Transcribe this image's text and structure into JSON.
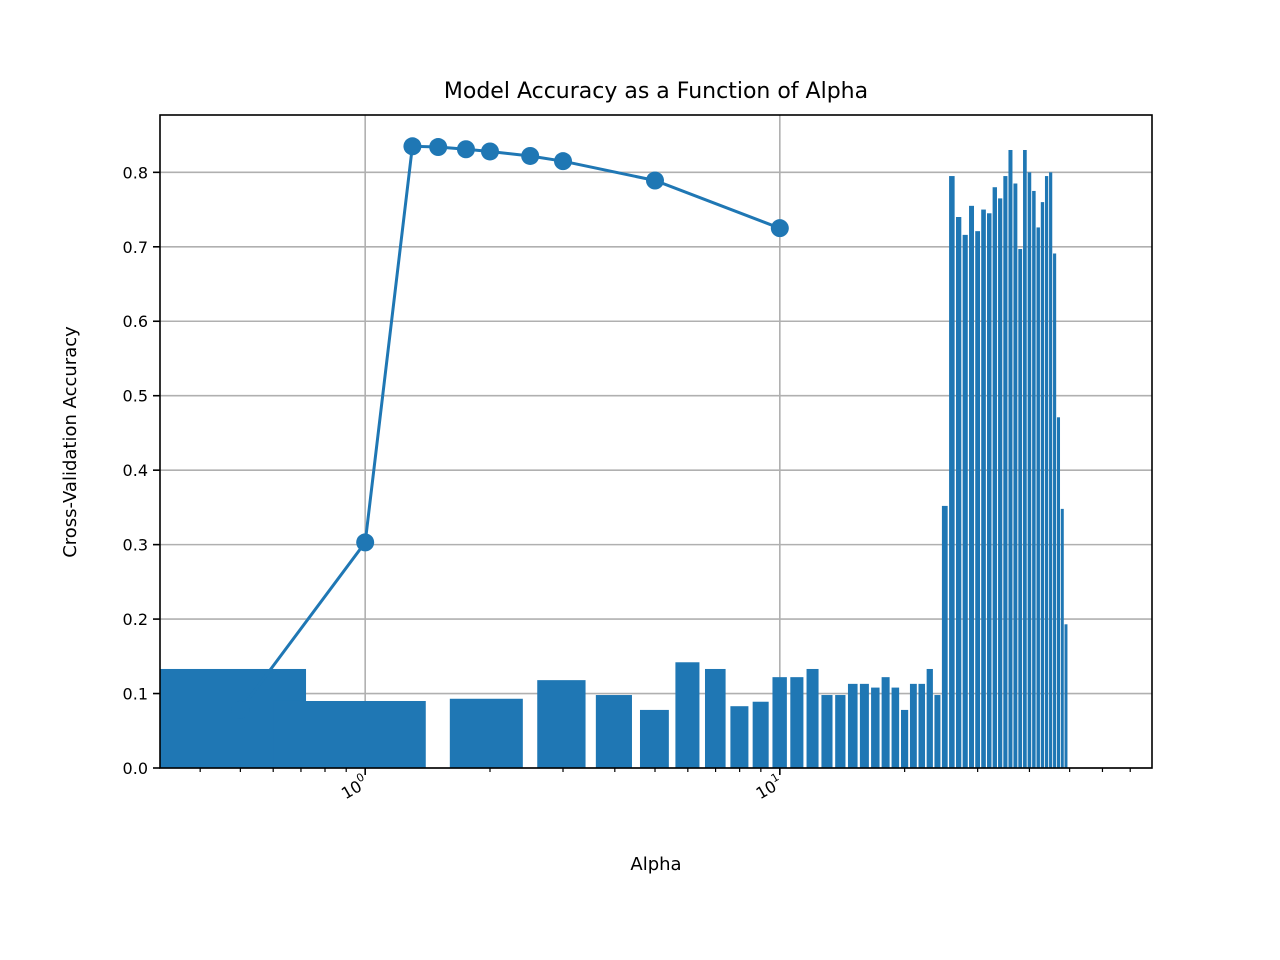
{
  "chart_data": {
    "type": "bar",
    "title": "Model Accuracy as a Function of Alpha",
    "xlabel": "Alpha",
    "ylabel": "Cross-Validation Accuracy",
    "xscale": "log",
    "xlim": [
      0.32,
      79.0
    ],
    "ylim": [
      0.0,
      0.877
    ],
    "grid": true,
    "color": "#1f77b4",
    "x_ticks": [
      {
        "value": 1,
        "base": "10",
        "exp": "0"
      },
      {
        "value": 10,
        "base": "10",
        "exp": "1"
      }
    ],
    "y_ticks": [
      {
        "value": 0.0,
        "label": "0.0"
      },
      {
        "value": 0.1,
        "label": "0.1"
      },
      {
        "value": 0.2,
        "label": "0.2"
      },
      {
        "value": 0.3,
        "label": "0.3"
      },
      {
        "value": 0.4,
        "label": "0.4"
      },
      {
        "value": 0.5,
        "label": "0.5"
      },
      {
        "value": 0.6,
        "label": "0.6"
      },
      {
        "value": 0.7,
        "label": "0.7"
      },
      {
        "value": 0.8,
        "label": "0.8"
      }
    ],
    "line_series": {
      "x": [
        0.5,
        1.0,
        1.3,
        1.5,
        1.75,
        2.0,
        2.5,
        3.0,
        5.0,
        10.0
      ],
      "y": [
        0.078,
        0.303,
        0.835,
        0.834,
        0.831,
        0.828,
        0.822,
        0.815,
        0.789,
        0.725
      ]
    },
    "bar_series": {
      "x": [
        0.32,
        1.0,
        2.0,
        3.0,
        4.0,
        5.0,
        6.0,
        7.0,
        8.0,
        9.0,
        10.0,
        11.0,
        12.0,
        13.0,
        14.0,
        15.0,
        16.0,
        17.0,
        18.0,
        19.0,
        20.0,
        21.0,
        22.0,
        23.0,
        24.0,
        25.0,
        26.0,
        27.0,
        28.0,
        29.0,
        30.0,
        31.0,
        32.0,
        33.0,
        34.0,
        35.0,
        36.0,
        37.0,
        38.0,
        39.0,
        40.0,
        41.0,
        42.0,
        43.0,
        44.0,
        45.0,
        46.0,
        47.0,
        48.0,
        49.0,
        50.0
      ],
      "values": [
        0.133,
        0.09,
        0.093,
        0.118,
        0.098,
        0.078,
        0.142,
        0.133,
        0.083,
        0.089,
        0.122,
        0.122,
        0.133,
        0.098,
        0.098,
        0.113,
        0.113,
        0.108,
        0.122,
        0.108,
        0.078,
        0.113,
        0.113,
        0.133,
        0.098,
        0.352,
        0.795,
        0.74,
        0.716,
        0.755,
        0.721,
        0.75,
        0.745,
        0.78,
        0.765,
        0.795,
        0.83,
        0.785,
        0.697,
        0.83,
        0.8,
        0.775,
        0.726,
        0.76,
        0.795,
        0.8,
        0.691,
        0.471,
        0.348,
        0.193,
        0.0
      ],
      "width": 0.8
    }
  }
}
